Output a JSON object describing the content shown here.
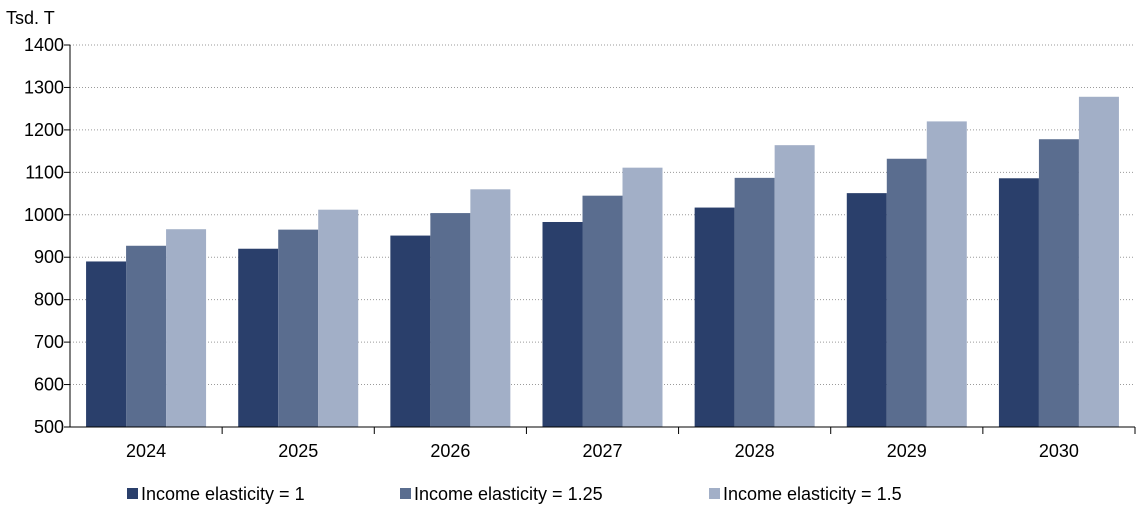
{
  "chart_data": {
    "type": "bar",
    "ylabel": "Tsd. T",
    "categories": [
      "2024",
      "2025",
      "2026",
      "2027",
      "2028",
      "2029",
      "2030"
    ],
    "ylim": [
      500,
      1400
    ],
    "yticks": [
      500,
      600,
      700,
      800,
      900,
      1000,
      1100,
      1200,
      1300,
      1400
    ],
    "grid": "horizontal dotted",
    "legend_position": "bottom",
    "series": [
      {
        "name": "Income elasticity = 1",
        "color": "#2a3f6b",
        "values": [
          890,
          920,
          951,
          983,
          1017,
          1051,
          1086
        ]
      },
      {
        "name": "Income elasticity = 1.25",
        "color": "#5a6d8f",
        "values": [
          927,
          965,
          1004,
          1045,
          1087,
          1132,
          1178
        ]
      },
      {
        "name": "Income elasticity = 1.5",
        "color": "#a2afc7",
        "values": [
          966,
          1012,
          1060,
          1111,
          1164,
          1220,
          1278
        ]
      }
    ]
  }
}
